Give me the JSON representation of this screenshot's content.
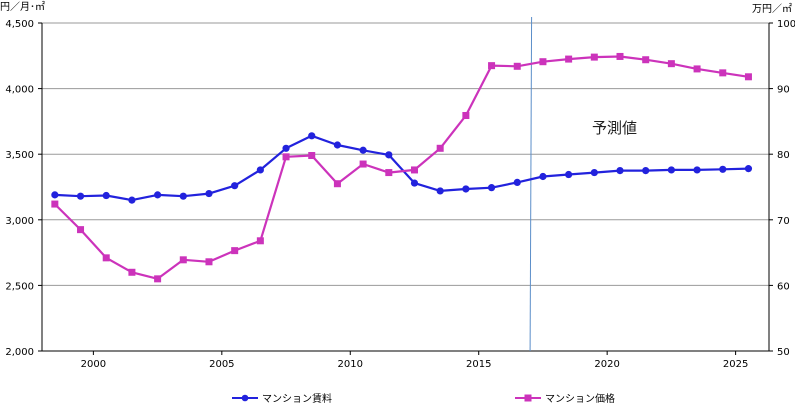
{
  "chart_data": {
    "type": "line",
    "y_left_unit": "円／月･㎡",
    "y_right_unit": "万円／㎡",
    "annotation": "予測値",
    "y_left_ticks": [
      "2,000",
      "2,500",
      "3,000",
      "3,500",
      "4,000",
      "4,500"
    ],
    "y_right_ticks": [
      "50",
      "60",
      "70",
      "80",
      "90",
      "100"
    ],
    "x_ticks": [
      "2000",
      "2005",
      "2010",
      "2015",
      "2020",
      "2025"
    ],
    "y_left_range": [
      2000,
      4500
    ],
    "y_right_range": [
      50,
      100
    ],
    "x_range": [
      1998.0,
      2026.3
    ],
    "forecast_start": 2017.0,
    "grid": true,
    "legend_position": "bottom",
    "x": [
      1998.5,
      1999.5,
      2000.5,
      2001.5,
      2002.5,
      2003.5,
      2004.5,
      2005.5,
      2006.5,
      2007.5,
      2008.5,
      2009.5,
      2010.5,
      2011.5,
      2012.5,
      2013.5,
      2014.5,
      2015.5,
      2016.5,
      2017.5,
      2018.5,
      2019.5,
      2020.5,
      2021.5,
      2022.5,
      2023.5,
      2024.5,
      2025.5
    ],
    "series": [
      {
        "name": "マンション賃料",
        "axis": "left",
        "color": "#2222dd",
        "marker": "circle",
        "values": [
          3190,
          3180,
          3185,
          3150,
          3190,
          3180,
          3200,
          3260,
          3380,
          3545,
          3640,
          3570,
          3530,
          3495,
          3280,
          3220,
          3235,
          3245,
          3285,
          3330,
          3345,
          3360,
          3375,
          3375,
          3380,
          3380,
          3385,
          3390
        ]
      },
      {
        "name": "マンション価格",
        "axis": "right",
        "color": "#cc33bb",
        "marker": "square",
        "values": [
          72.4,
          68.5,
          64.2,
          62.0,
          61.0,
          63.9,
          63.6,
          65.3,
          66.8,
          79.6,
          79.8,
          75.5,
          78.5,
          77.2,
          77.6,
          80.9,
          85.9,
          93.5,
          93.4,
          94.1,
          94.5,
          94.8,
          94.9,
          94.4,
          93.8,
          93.0,
          92.4,
          91.8
        ]
      }
    ]
  }
}
